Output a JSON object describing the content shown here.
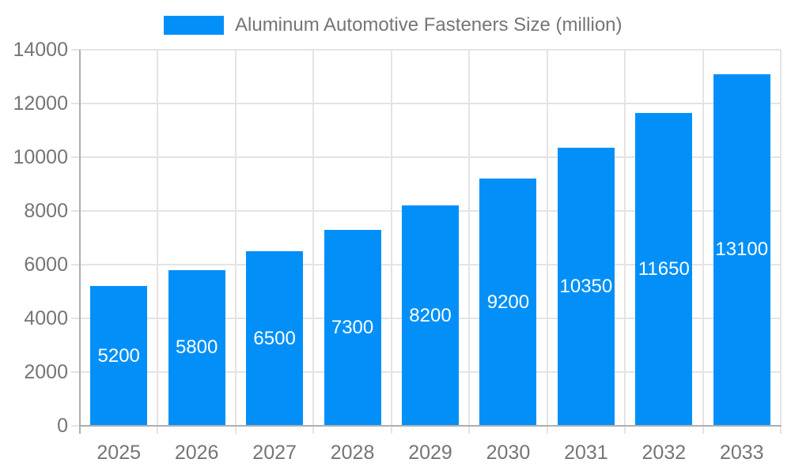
{
  "chart_data": {
    "type": "bar",
    "categories": [
      "2025",
      "2026",
      "2027",
      "2028",
      "2029",
      "2030",
      "2031",
      "2032",
      "2033"
    ],
    "series": [
      {
        "name": "Aluminum Automotive Fasteners Size (million)",
        "values": [
          5200,
          5800,
          6500,
          7300,
          8200,
          9200,
          10350,
          11650,
          13100
        ]
      }
    ],
    "xlabel": "",
    "ylabel": "",
    "ylim": [
      0,
      14000
    ],
    "yticks": [
      0,
      2000,
      4000,
      6000,
      8000,
      10000,
      12000,
      14000
    ],
    "grid": true,
    "legend_position": "top",
    "bar_labels_shown": true,
    "bar_color": "#0290f8",
    "bar_label_color": "#ffffff",
    "axis_text_color": "#757575",
    "gridline_color": "#e4e4e4",
    "axis_line_color": "#aeaeae",
    "background_color": "#ffffff"
  }
}
